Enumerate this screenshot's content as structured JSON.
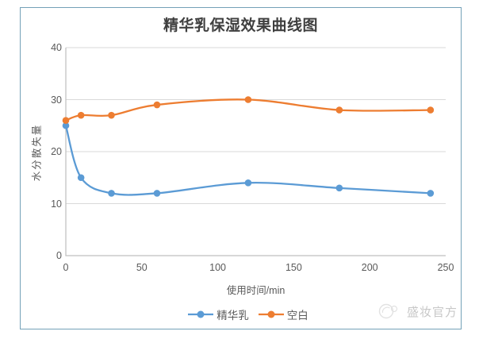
{
  "title": "精华乳保湿效果曲线图",
  "watermark": {
    "text": "盛妆官方"
  },
  "chart_data": {
    "type": "line",
    "title": "精华乳保湿效果曲线图",
    "xlabel": "使用时间/min",
    "ylabel": "水分散失量",
    "x": [
      0,
      10,
      30,
      60,
      120,
      180,
      240
    ],
    "series": [
      {
        "name": "精华乳",
        "color": "#5B9BD5",
        "values": [
          25,
          15,
          12,
          12,
          14,
          13,
          12
        ]
      },
      {
        "name": "空白",
        "color": "#ED7D31",
        "values": [
          26,
          27,
          27,
          29,
          30,
          28,
          28
        ]
      }
    ],
    "xlim": [
      0,
      250
    ],
    "ylim": [
      0,
      40
    ],
    "x_ticks": [
      0,
      50,
      100,
      150,
      200,
      250
    ],
    "y_ticks": [
      0,
      10,
      20,
      30,
      40
    ],
    "grid": "horizontal",
    "smooth": true,
    "marker": "circle",
    "legend_position": "bottom"
  },
  "colors": {
    "frame_border": "#74A1B8",
    "gridline": "#D9D9D9",
    "axis_line": "#BFBFBF",
    "tick_label": "#595959",
    "title_text": "#3F3F3F",
    "watermark_text": "#C8C8C8",
    "watermark_logo": "#DEDEDE"
  }
}
